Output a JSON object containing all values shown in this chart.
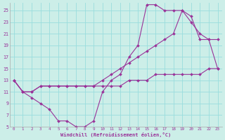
{
  "line1_x": [
    0,
    1,
    2,
    3,
    4,
    5,
    6,
    7,
    8,
    9,
    10,
    11,
    12,
    13,
    14,
    15,
    16,
    17,
    18,
    19,
    20,
    21,
    22,
    23
  ],
  "line1_y": [
    13,
    11,
    10,
    9,
    8,
    6,
    6,
    5,
    5,
    6,
    11,
    13,
    14,
    17,
    19,
    26,
    26,
    25,
    25,
    25,
    24,
    20,
    20,
    15
  ],
  "line2_x": [
    0,
    1,
    2,
    3,
    4,
    5,
    6,
    7,
    8,
    9,
    10,
    11,
    12,
    13,
    14,
    15,
    16,
    17,
    18,
    19,
    20,
    21,
    22,
    23
  ],
  "line2_y": [
    13,
    11,
    11,
    12,
    12,
    12,
    12,
    12,
    12,
    12,
    13,
    14,
    15,
    16,
    17,
    18,
    19,
    20,
    21,
    25,
    23,
    21,
    20,
    20
  ],
  "line3_x": [
    0,
    1,
    2,
    3,
    4,
    5,
    6,
    7,
    8,
    9,
    10,
    11,
    12,
    13,
    14,
    15,
    16,
    17,
    18,
    19,
    20,
    21,
    22,
    23
  ],
  "line3_y": [
    13,
    11,
    11,
    12,
    12,
    12,
    12,
    12,
    12,
    12,
    12,
    12,
    12,
    13,
    13,
    13,
    14,
    14,
    14,
    14,
    14,
    14,
    15,
    15
  ],
  "color": "#993399",
  "bg_color": "#cceee8",
  "grid_color": "#99dddd",
  "xlabel": "Windchill (Refroidissement éolien,°C)",
  "ylim": [
    5,
    26
  ],
  "xlim": [
    -0.5,
    23.5
  ],
  "yticks": [
    5,
    7,
    9,
    11,
    13,
    15,
    17,
    19,
    21,
    23,
    25
  ],
  "xticks": [
    0,
    1,
    2,
    3,
    4,
    5,
    6,
    7,
    8,
    9,
    10,
    11,
    12,
    13,
    14,
    15,
    16,
    17,
    18,
    19,
    20,
    21,
    22,
    23
  ]
}
